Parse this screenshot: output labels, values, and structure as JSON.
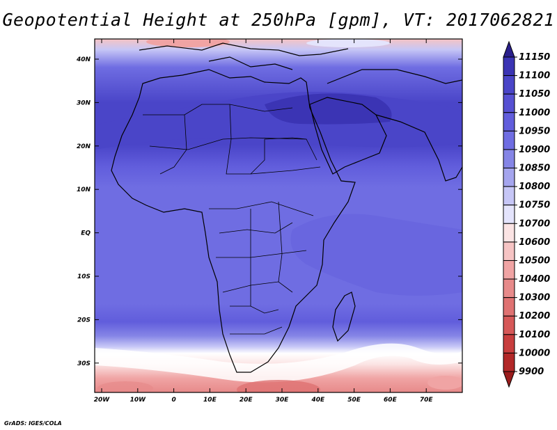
{
  "title": "Geopotential Height at 250hPa [gpm], VT: 2017062821",
  "credit": "GrADS: IGES/COLA",
  "map": {
    "lat_labels": [
      "40N",
      "30N",
      "20N",
      "10N",
      "EQ",
      "10S",
      "20S",
      "30S"
    ],
    "lon_labels": [
      "20W",
      "10W",
      "0",
      "10E",
      "20E",
      "30E",
      "40E",
      "50E",
      "60E",
      "70E"
    ]
  },
  "colorbar": {
    "levels": [
      "11150",
      "11100",
      "11050",
      "11000",
      "10950",
      "10900",
      "10850",
      "10800",
      "10750",
      "10700",
      "10600",
      "10500",
      "10400",
      "10300",
      "10200",
      "10100",
      "10000",
      "9900"
    ],
    "colors": [
      "#2a1f8c",
      "#3b34b4",
      "#4a45c8",
      "#5650d2",
      "#615ddc",
      "#6f6de2",
      "#8585e6",
      "#a5a5ee",
      "#c6c6f6",
      "#e4e4fc",
      "#fbe4e4",
      "#f6c4c4",
      "#f0a4a4",
      "#e78a8a",
      "#df7272",
      "#d65858",
      "#c83e3e",
      "#b22828",
      "#9a1c1c"
    ]
  }
}
